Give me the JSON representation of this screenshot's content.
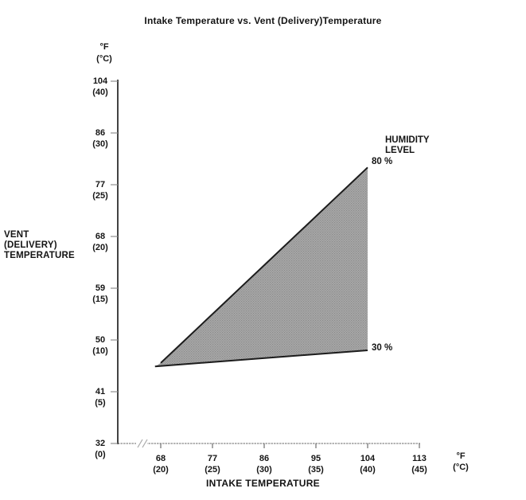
{
  "chart_data": {
    "type": "area",
    "title": "Intake Temperature vs. Vent (Delivery)Temperature",
    "xlabel": "INTAKE TEMPERATURE",
    "ylabel": "VENT\n(DELIVERY)\nTEMPERATURE",
    "x_axis_unit": "°F\n(°C)",
    "y_axis_unit": "°F\n(°C)",
    "x_ticks": [
      {
        "f": "68",
        "c": "(20)"
      },
      {
        "f": "77",
        "c": "(25)"
      },
      {
        "f": "86",
        "c": "(30)"
      },
      {
        "f": "95",
        "c": "(35)"
      },
      {
        "f": "104",
        "c": "(40)"
      },
      {
        "f": "113",
        "c": "(45)"
      }
    ],
    "y_ticks": [
      {
        "f": "104",
        "c": "(40)"
      },
      {
        "f": "86",
        "c": "(30)"
      },
      {
        "f": "77",
        "c": "(25)"
      },
      {
        "f": "68",
        "c": "(20)"
      },
      {
        "f": "59",
        "c": "(15)"
      },
      {
        "f": "50",
        "c": "(10)"
      },
      {
        "f": "41",
        "c": "(5)"
      },
      {
        "f": "32",
        "c": "(0)"
      }
    ],
    "xlim_f": [
      68,
      113
    ],
    "ylim_f": [
      32,
      104
    ],
    "x_axis_break": true,
    "grid": false,
    "legend_title": "HUMIDITY\nLEVEL",
    "legend_position": "right of shaded region apex",
    "series": [
      {
        "name": "80 %",
        "points_f": [
          [
            68,
            46
          ],
          [
            104,
            80
          ]
        ]
      },
      {
        "name": "30 %",
        "points_f": [
          [
            67,
            45.4
          ],
          [
            104,
            48.2
          ]
        ]
      }
    ],
    "region_points_f": [
      [
        68,
        46
      ],
      [
        104,
        80
      ],
      [
        104,
        48.2
      ],
      [
        67,
        45.4
      ]
    ],
    "region_fill": "#a9a9a9",
    "region_dot_color": "#8a8a8a",
    "line_color": "#1c1c1c",
    "y_axis_color": "#2d2d2d",
    "x_axis_color": "#9b9b9b",
    "tick_color": "#8f8f8f"
  }
}
